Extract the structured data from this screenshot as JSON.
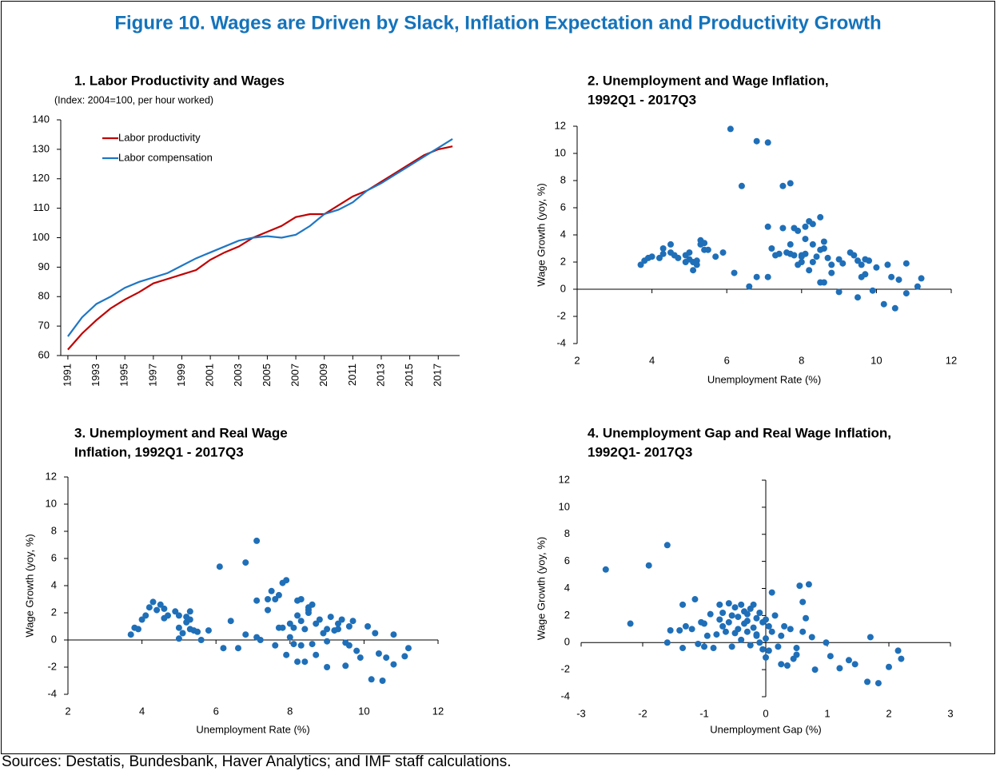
{
  "title": "Figure 10. Wages are Driven by Slack, Inflation Expectation and Productivity Growth",
  "source": "Sources: Destatis, Bundesbank, Haver Analytics; and IMF staff calculations.",
  "chart_data": [
    {
      "type": "line",
      "title": [
        "1. Labor Productivity and Wages"
      ],
      "subtitle": "(Index: 2004=100, per hour worked)",
      "x": [
        1991,
        1992,
        1993,
        1994,
        1995,
        1996,
        1997,
        1998,
        1999,
        2000,
        2001,
        2002,
        2003,
        2004,
        2005,
        2006,
        2007,
        2008,
        2009,
        2010,
        2011,
        2012,
        2013,
        2014,
        2015,
        2016,
        2017,
        2018
      ],
      "series": [
        {
          "name": "Labor productivity",
          "color": "#c00000",
          "values": [
            62,
            67.5,
            72,
            76,
            79,
            81.5,
            84.5,
            86,
            87.5,
            89,
            92.5,
            95,
            97,
            100,
            102,
            104,
            107,
            108,
            108,
            111,
            114,
            116,
            119,
            122,
            125,
            128,
            130,
            131
          ]
        },
        {
          "name": "Labor compensation",
          "color": "#1f77c4",
          "values": [
            66.5,
            73,
            77.5,
            80,
            83,
            85,
            86.5,
            88,
            90.5,
            93,
            95,
            97,
            99,
            100,
            100.5,
            100,
            101,
            104,
            108,
            109.5,
            112,
            116,
            118.5,
            121.5,
            124.5,
            127.5,
            130.5,
            133.5
          ]
        }
      ],
      "xlim": [
        1990.5,
        2018.5
      ],
      "xticks": [
        1991,
        1993,
        1995,
        1997,
        1999,
        2001,
        2003,
        2005,
        2007,
        2009,
        2011,
        2013,
        2015,
        2017
      ],
      "ylim": [
        60,
        140
      ],
      "yticks": [
        60,
        70,
        80,
        90,
        100,
        110,
        120,
        130,
        140
      ],
      "legend": "upper left"
    },
    {
      "type": "scatter",
      "title": [
        "2. Unemployment and Wage Inflation,",
        "1992Q1 - 2017Q3"
      ],
      "ylabel": "Wage Growth  (yoy, %)",
      "xlabel": "Unemployment Rate (%)",
      "color": "#1f6fb8",
      "x": [
        3.7,
        3.8,
        3.9,
        4.0,
        4.2,
        4.3,
        4.3,
        4.5,
        4.5,
        4.6,
        4.7,
        4.9,
        4.9,
        5.0,
        5.0,
        5.1,
        5.1,
        5.2,
        5.2,
        5.3,
        5.3,
        5.4,
        5.4,
        5.5,
        5.7,
        5.9,
        6.1,
        6.2,
        6.4,
        6.6,
        6.8,
        6.8,
        7.1,
        7.1,
        7.1,
        7.2,
        7.4,
        7.5,
        7.5,
        7.6,
        7.7,
        7.7,
        7.7,
        7.8,
        7.8,
        7.9,
        7.9,
        8.0,
        8.0,
        8.1,
        8.1,
        8.1,
        8.2,
        8.2,
        8.3,
        8.3,
        8.3,
        8.4,
        8.5,
        8.5,
        8.5,
        8.6,
        8.6,
        8.6,
        8.7,
        8.8,
        8.8,
        9.0,
        9.0,
        9.1,
        9.3,
        9.4,
        9.5,
        9.5,
        9.6,
        9.6,
        9.7,
        9.7,
        9.8,
        9.9,
        10.0,
        10.2,
        10.3,
        10.4,
        10.5,
        10.6,
        10.8,
        10.8,
        11.1,
        11.2,
        8.0,
        7.3
      ],
      "y": [
        1.8,
        2.1,
        2.3,
        2.4,
        2.3,
        2.6,
        3.0,
        3.3,
        2.7,
        2.5,
        2.3,
        2.5,
        2.0,
        2.7,
        2.2,
        1.4,
        2.0,
        1.8,
        2.1,
        3.3,
        3.6,
        3.4,
        2.9,
        2.9,
        2.4,
        2.7,
        11.8,
        1.2,
        7.6,
        0.2,
        10.9,
        0.9,
        0.9,
        10.8,
        4.6,
        3.0,
        2.6,
        7.6,
        4.5,
        2.7,
        7.8,
        3.3,
        2.6,
        4.5,
        2.5,
        4.3,
        1.8,
        2.4,
        2.0,
        2.6,
        4.6,
        3.7,
        5.0,
        1.4,
        2.0,
        4.8,
        3.3,
        2.4,
        5.3,
        0.5,
        2.9,
        3.5,
        3.0,
        0.5,
        2.3,
        1.2,
        1.8,
        2.2,
        -0.2,
        1.9,
        2.7,
        2.5,
        2.1,
        -0.6,
        1.8,
        0.9,
        2.2,
        1.1,
        2.1,
        -0.1,
        1.6,
        -1.1,
        1.8,
        0.9,
        -1.4,
        0.7,
        1.9,
        -0.3,
        0.2,
        0.8,
        2.5,
        2.5
      ],
      "xlim": [
        2,
        12
      ],
      "xticks": [
        2,
        4,
        6,
        8,
        10,
        12
      ],
      "ylim": [
        -4,
        12
      ],
      "yticks": [
        -4,
        -2,
        0,
        2,
        4,
        6,
        8,
        10,
        12
      ]
    },
    {
      "type": "scatter",
      "title": [
        "3. Unemployment and Real Wage",
        "Inflation, 1992Q1 - 2017Q3"
      ],
      "ylabel": "Wage Growth (yoy, %)",
      "xlabel": "Unemployment Rate (%)",
      "color": "#1f6fb8",
      "x": [
        3.7,
        3.8,
        3.9,
        4.0,
        4.1,
        4.2,
        4.3,
        4.4,
        4.5,
        4.6,
        4.6,
        4.7,
        4.9,
        5.0,
        5.0,
        5.0,
        5.1,
        5.2,
        5.2,
        5.3,
        5.3,
        5.3,
        5.4,
        5.5,
        5.6,
        5.8,
        6.1,
        6.2,
        6.4,
        6.6,
        6.8,
        6.8,
        7.1,
        7.1,
        7.1,
        7.2,
        7.4,
        7.4,
        7.5,
        7.6,
        7.7,
        7.6,
        7.7,
        7.8,
        7.8,
        7.9,
        7.9,
        8.0,
        8.0,
        8.1,
        8.1,
        8.2,
        8.2,
        8.2,
        8.3,
        8.3,
        8.3,
        8.4,
        8.4,
        8.5,
        8.5,
        8.6,
        8.6,
        8.7,
        8.7,
        8.8,
        8.9,
        9.0,
        9.0,
        9.1,
        9.2,
        9.3,
        9.3,
        9.4,
        9.5,
        9.5,
        9.6,
        9.6,
        9.7,
        9.8,
        9.9,
        10.1,
        10.2,
        10.3,
        10.4,
        10.5,
        10.6,
        10.8,
        10.8,
        11.1,
        11.2,
        8.5,
        9.0
      ],
      "y": [
        0.4,
        0.9,
        0.8,
        1.5,
        1.8,
        2.4,
        2.8,
        2.2,
        2.6,
        2.3,
        1.6,
        1.8,
        2.1,
        1.8,
        0.9,
        0.1,
        0.5,
        1.3,
        1.7,
        2.1,
        1.5,
        0.8,
        0.7,
        0.6,
        0.0,
        0.7,
        5.4,
        -0.6,
        1.4,
        -0.6,
        5.7,
        0.4,
        0.2,
        7.3,
        2.9,
        0.0,
        3.0,
        2.2,
        3.6,
        3.0,
        3.3,
        -0.4,
        0.9,
        4.2,
        0.9,
        4.4,
        -1.1,
        1.2,
        0.2,
        0.9,
        -0.3,
        2.9,
        1.8,
        -1.6,
        3.0,
        1.4,
        -0.4,
        0.8,
        -1.6,
        2.4,
        2.0,
        2.6,
        -0.3,
        1.2,
        -1.1,
        1.5,
        0.5,
        0.8,
        -2.0,
        1.7,
        0.7,
        0.8,
        1.2,
        1.5,
        -0.2,
        -1.9,
        1.0,
        -0.4,
        1.4,
        -0.8,
        -1.3,
        1.0,
        -2.9,
        0.5,
        -1.0,
        -3.0,
        -1.3,
        0.4,
        -1.8,
        -1.2,
        -0.6,
        2.2,
        -0.1
      ],
      "xlim": [
        2,
        12
      ],
      "xticks": [
        2,
        4,
        6,
        8,
        10,
        12
      ],
      "ylim": [
        -4,
        12
      ],
      "yticks": [
        -4,
        -2,
        0,
        2,
        4,
        6,
        8,
        10,
        12
      ]
    },
    {
      "type": "scatter",
      "title": [
        "4. Unemployment Gap and Real Wage Inflation,",
        "1992Q1- 2017Q3"
      ],
      "ylabel": "Wage Growth (yoy, %)",
      "xlabel": "Unemployment Gap (%)",
      "color": "#1f6fb8",
      "x": [
        -2.6,
        -2.2,
        -1.9,
        -1.6,
        -1.6,
        -1.55,
        -1.4,
        -1.35,
        -1.35,
        -1.3,
        -1.2,
        -1.15,
        -1.1,
        -1.05,
        -1.0,
        -1.0,
        -0.95,
        -0.9,
        -0.85,
        -0.8,
        -0.75,
        -0.75,
        -0.7,
        -0.7,
        -0.65,
        -0.6,
        -0.6,
        -0.55,
        -0.55,
        -0.5,
        -0.5,
        -0.45,
        -0.45,
        -0.4,
        -0.4,
        -0.35,
        -0.35,
        -0.3,
        -0.3,
        -0.25,
        -0.25,
        -0.2,
        -0.2,
        -0.15,
        -0.15,
        -0.1,
        -0.1,
        -0.05,
        -0.05,
        0.0,
        0.0,
        0.0,
        0.05,
        0.05,
        0.1,
        0.1,
        0.15,
        0.2,
        0.25,
        0.25,
        0.3,
        0.35,
        0.4,
        0.45,
        0.5,
        0.5,
        0.55,
        0.6,
        0.6,
        0.65,
        0.7,
        0.75,
        0.8,
        0.98,
        1.05,
        1.2,
        1.35,
        1.45,
        1.65,
        1.7,
        1.83,
        2.0,
        2.15,
        2.2,
        -0.3,
        -0.15
      ],
      "y": [
        5.4,
        1.4,
        5.7,
        7.2,
        0.0,
        0.9,
        0.9,
        -0.4,
        2.8,
        1.2,
        1.0,
        3.2,
        -0.1,
        1.5,
        1.4,
        -0.3,
        0.5,
        2.1,
        -0.4,
        0.6,
        1.7,
        2.8,
        1.2,
        2.2,
        0.8,
        2.9,
        1.5,
        2.0,
        -0.3,
        0.7,
        2.6,
        1.9,
        1.0,
        2.8,
        0.2,
        1.4,
        2.3,
        0.8,
        1.6,
        2.5,
        -0.2,
        1.1,
        2.8,
        0.6,
        1.8,
        2.2,
        0.0,
        1.5,
        -0.5,
        0.3,
        1.7,
        -1.1,
        -0.6,
        1.2,
        3.7,
        0.8,
        2.0,
        -0.3,
        0.5,
        -1.6,
        1.2,
        -1.7,
        1.0,
        -1.2,
        -0.4,
        -0.9,
        4.2,
        3.0,
        0.8,
        1.8,
        4.3,
        0.4,
        -2.0,
        0.0,
        -1.0,
        -1.9,
        -1.3,
        -1.6,
        -2.9,
        0.4,
        -3.0,
        -1.8,
        -0.6,
        -1.2,
        2.1,
        0.5
      ],
      "xlim": [
        -3,
        3
      ],
      "xticks": [
        -3,
        -2,
        -1,
        0,
        1,
        2,
        3
      ],
      "ylim": [
        -4,
        12
      ],
      "yticks": [
        -4,
        -2,
        0,
        2,
        4,
        6,
        8,
        10,
        12
      ]
    }
  ]
}
